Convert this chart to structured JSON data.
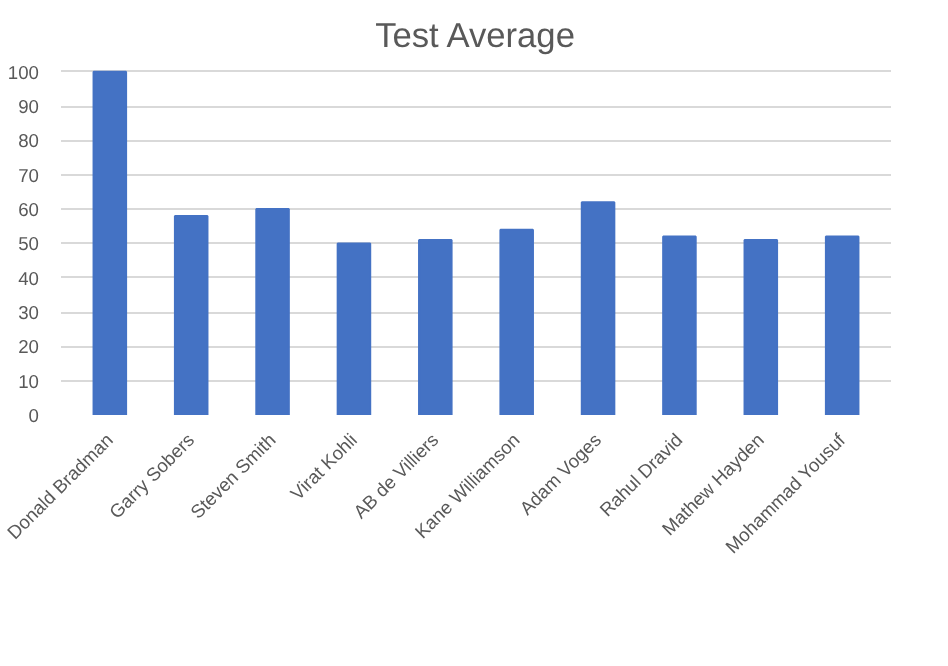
{
  "chart_data": {
    "type": "bar",
    "title": "Test Average",
    "categories": [
      "Donald Bradman",
      "Garry Sobers",
      "Steven Smith",
      "Virat Kohli",
      "AB de Villiers",
      "Kane Williamson",
      "Adam Voges",
      "Rahul Dravid",
      "Mathew Hayden",
      "Mohammad Yousuf"
    ],
    "values": [
      100,
      58,
      60,
      50,
      51,
      54,
      62,
      52,
      51,
      52
    ],
    "color": "#4472c4",
    "ylim": [
      0,
      100
    ],
    "yticks": [
      0,
      10,
      20,
      30,
      40,
      50,
      60,
      70,
      80,
      90,
      100
    ],
    "grid": "y"
  }
}
